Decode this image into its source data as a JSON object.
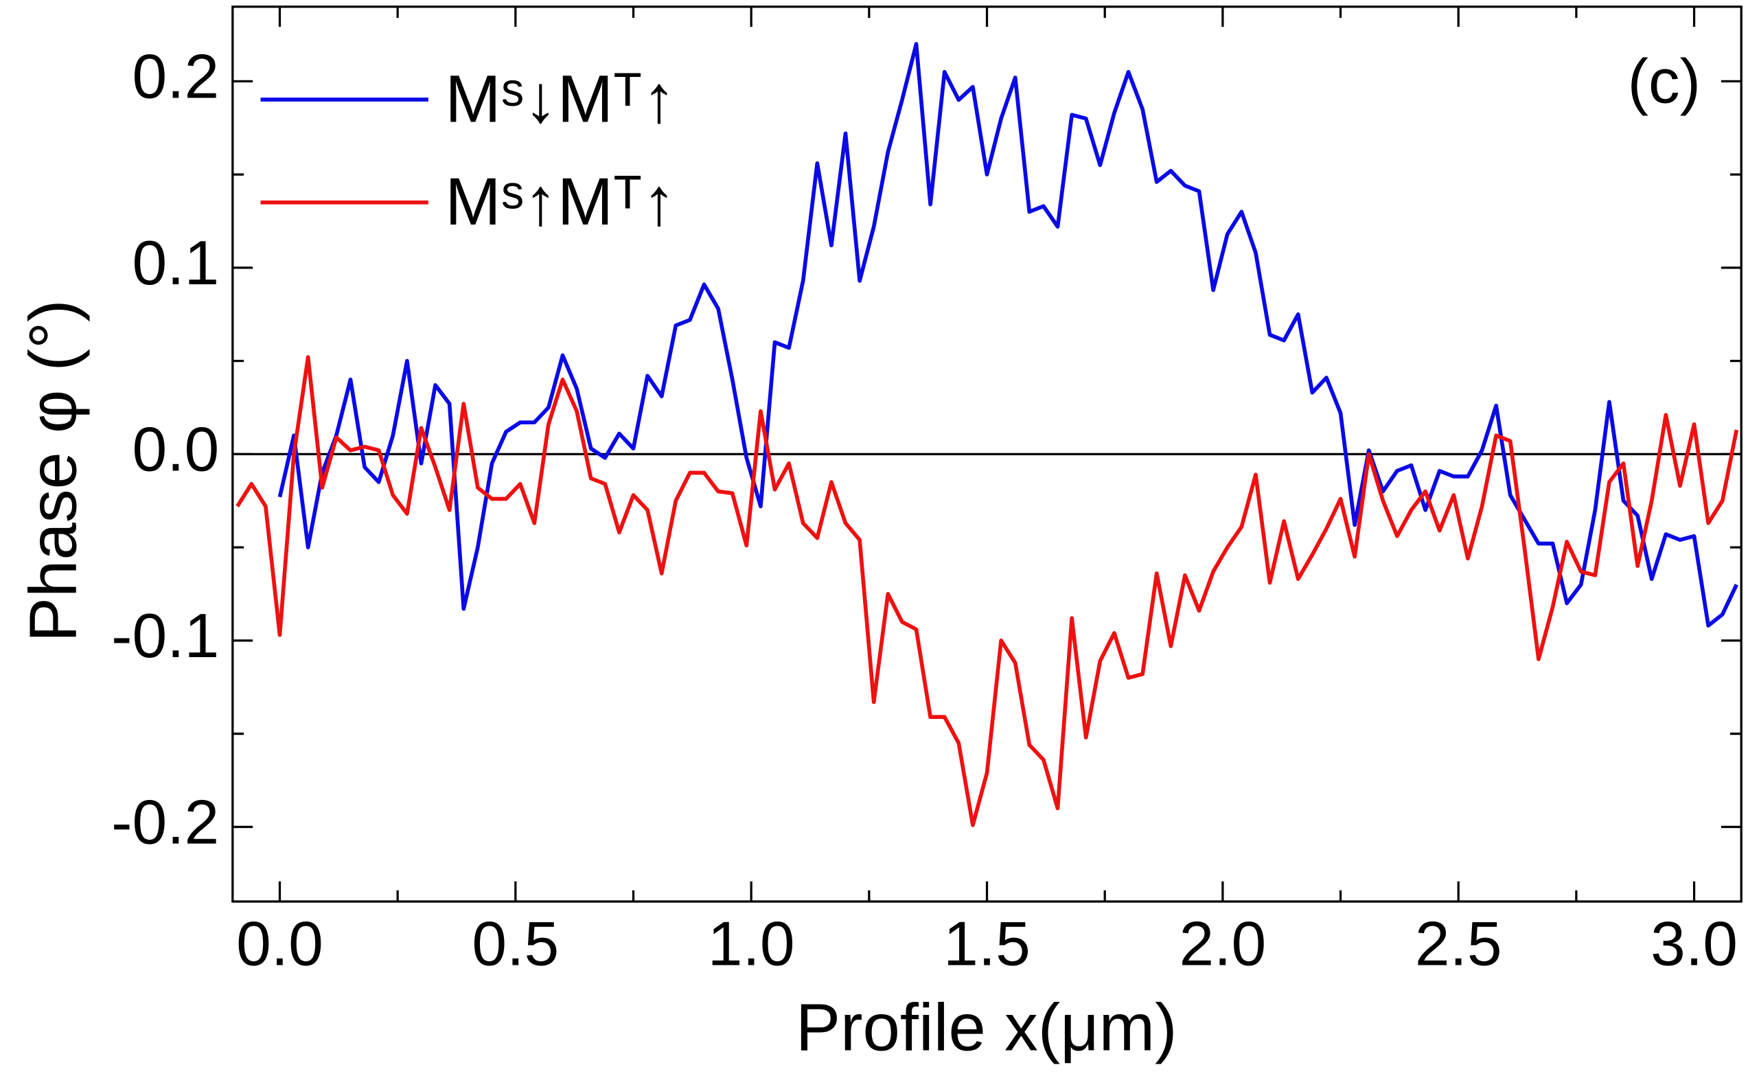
{
  "chart_data": {
    "type": "line",
    "x_label": "Profile x(μm)",
    "y_label": "Phase φ (°)",
    "annotation": "(c)",
    "xlim": [
      -0.1,
      3.1
    ],
    "ylim": [
      -0.24,
      0.24
    ],
    "xticks": [
      {
        "value": 0,
        "label": "0.0"
      },
      0.5,
      {
        "value": 1,
        "label": "1.0"
      },
      1.5,
      {
        "value": 2,
        "label": "2.0"
      },
      2.5,
      {
        "value": 3,
        "label": "3.0"
      }
    ],
    "xminorticks": [
      0.25,
      0.75,
      1.25,
      1.75,
      2.25,
      2.75
    ],
    "yticks": [
      -0.2,
      -0.1,
      {
        "value": 0,
        "label": "0.0"
      },
      0.1,
      0.2
    ],
    "yminorticks": [
      -0.15,
      -0.05,
      0.05,
      0.15
    ],
    "zero_line": true,
    "legend": "upper left",
    "x": [
      -0.09,
      -0.06,
      -0.03,
      0,
      0.03,
      0.06,
      0.09,
      0.12,
      0.15,
      0.18,
      0.21,
      0.24,
      0.27,
      0.3,
      0.33,
      0.36,
      0.39,
      0.42,
      0.45,
      0.48,
      0.51,
      0.54,
      0.57,
      0.6,
      0.63,
      0.66,
      0.69,
      0.72,
      0.75,
      0.78,
      0.81,
      0.84,
      0.87,
      0.9,
      0.93,
      0.96,
      0.99,
      1.02,
      1.05,
      1.08,
      1.11,
      1.14,
      1.17,
      1.2,
      1.23,
      1.26,
      1.29,
      1.32,
      1.35,
      1.38,
      1.41,
      1.44,
      1.47,
      1.5,
      1.53,
      1.56,
      1.59,
      1.62,
      1.65,
      1.68,
      1.71,
      1.74,
      1.77,
      1.8,
      1.83,
      1.86,
      1.89,
      1.92,
      1.95,
      1.98,
      2.01,
      2.04,
      2.07,
      2.1,
      2.13,
      2.16,
      2.19,
      2.22,
      2.25,
      2.28,
      2.31,
      2.34,
      2.37,
      2.4,
      2.43,
      2.46,
      2.49,
      2.52,
      2.55,
      2.58,
      2.61,
      2.64,
      2.67,
      2.7,
      2.73,
      2.76,
      2.79,
      2.82,
      2.85,
      2.88,
      2.91,
      2.94,
      2.97,
      3,
      3.03,
      3.06,
      3.09
    ],
    "series": [
      {
        "name": "Mˢ↓Mᵀ↑",
        "color": "#0a0ae6",
        "values": [
          null,
          null,
          null,
          -0.023,
          0.01,
          -0.05,
          -0.01,
          0.01,
          0.04,
          -0.007,
          -0.015,
          0.01,
          0.05,
          -0.005,
          0.037,
          0.027,
          -0.083,
          -0.05,
          -0.005,
          0.012,
          0.017,
          0.017,
          0.025,
          0.053,
          0.035,
          0.003,
          -0.002,
          0.011,
          0.003,
          0.042,
          0.031,
          0.069,
          0.072,
          0.091,
          0.078,
          0.04,
          -0.002,
          -0.028,
          0.06,
          0.057,
          0.093,
          0.156,
          0.112,
          0.172,
          0.093,
          0.122,
          0.162,
          0.19,
          0.22,
          0.134,
          0.205,
          0.19,
          0.197,
          0.15,
          0.18,
          0.202,
          0.13,
          0.133,
          0.122,
          0.182,
          0.18,
          0.155,
          0.183,
          0.205,
          0.185,
          0.146,
          0.152,
          0.144,
          0.141,
          0.088,
          0.118,
          0.13,
          0.108,
          0.064,
          0.061,
          0.075,
          0.033,
          0.041,
          0.022,
          -0.038,
          0.002,
          -0.02,
          -0.009,
          -0.006,
          -0.03,
          -0.009,
          -0.012,
          -0.012,
          0.002,
          0.026,
          -0.022,
          -0.035,
          -0.048,
          -0.048,
          -0.08,
          -0.07,
          -0.03,
          0.028,
          -0.025,
          -0.033,
          -0.067,
          -0.043,
          -0.046,
          -0.044,
          -0.092,
          -0.086,
          -0.07
        ]
      },
      {
        "name": "Mˢ↑Mᵀ↑",
        "color": "#ee1111",
        "values": [
          -0.028,
          -0.016,
          -0.028,
          -0.097,
          0.0,
          0.052,
          -0.018,
          0.009,
          0.002,
          0.004,
          0.002,
          -0.022,
          -0.032,
          0.014,
          -0.007,
          -0.03,
          0.027,
          -0.018,
          -0.024,
          -0.024,
          -0.016,
          -0.037,
          0.016,
          0.04,
          0.023,
          -0.013,
          -0.016,
          -0.042,
          -0.022,
          -0.03,
          -0.064,
          -0.025,
          -0.01,
          -0.01,
          -0.02,
          -0.021,
          -0.049,
          0.023,
          -0.019,
          -0.005,
          -0.037,
          -0.045,
          -0.015,
          -0.037,
          -0.046,
          -0.133,
          -0.075,
          -0.09,
          -0.094,
          -0.141,
          -0.141,
          -0.155,
          -0.199,
          -0.171,
          -0.1,
          -0.112,
          -0.156,
          -0.164,
          -0.19,
          -0.088,
          -0.152,
          -0.111,
          -0.096,
          -0.12,
          -0.118,
          -0.064,
          -0.103,
          -0.065,
          -0.084,
          -0.063,
          -0.05,
          -0.039,
          -0.011,
          -0.069,
          -0.036,
          -0.067,
          -0.054,
          -0.04,
          -0.024,
          -0.055,
          0.0,
          -0.025,
          -0.044,
          -0.03,
          -0.02,
          -0.041,
          -0.022,
          -0.056,
          -0.028,
          0.01,
          0.007,
          -0.05,
          -0.11,
          -0.082,
          -0.047,
          -0.063,
          -0.065,
          -0.015,
          -0.005,
          -0.06,
          -0.025,
          0.021,
          -0.017,
          0.016,
          -0.037,
          -0.025,
          0.013
        ]
      }
    ]
  }
}
